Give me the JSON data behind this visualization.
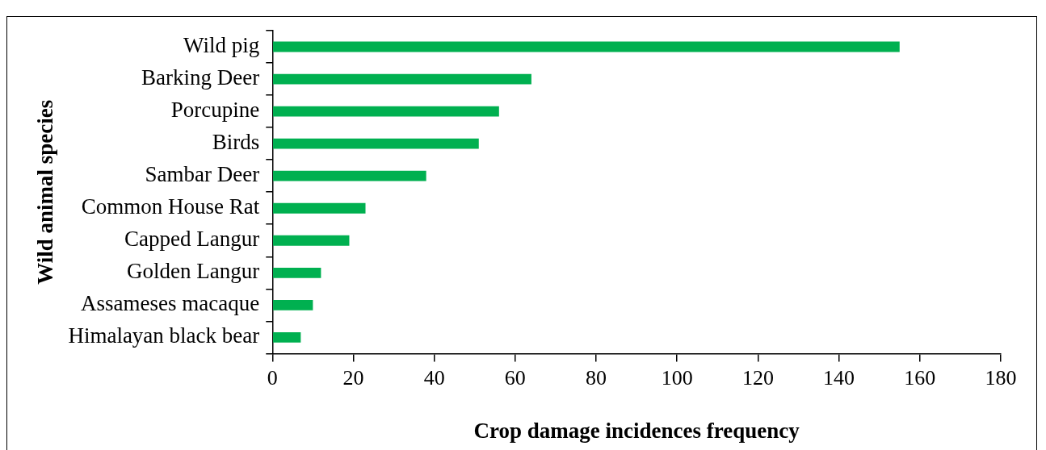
{
  "chart_data": {
    "type": "bar",
    "orientation": "horizontal",
    "xlabel": "Crop damage incidences frequency",
    "ylabel": "Wild animal species",
    "categories": [
      "Wild pig",
      "Barking Deer",
      "Porcupine",
      "Birds",
      "Sambar Deer",
      "Common House Rat",
      "Capped Langur",
      "Golden Langur",
      "Assameses macaque",
      "Himalayan black bear"
    ],
    "values": [
      155,
      64,
      56,
      51,
      38,
      23,
      19,
      12,
      10,
      7
    ],
    "color": "#00b050",
    "xlim": [
      0,
      180
    ],
    "xticks": [
      0,
      20,
      40,
      60,
      80,
      100,
      120,
      140,
      160,
      180
    ],
    "grid": false,
    "legend": false
  }
}
